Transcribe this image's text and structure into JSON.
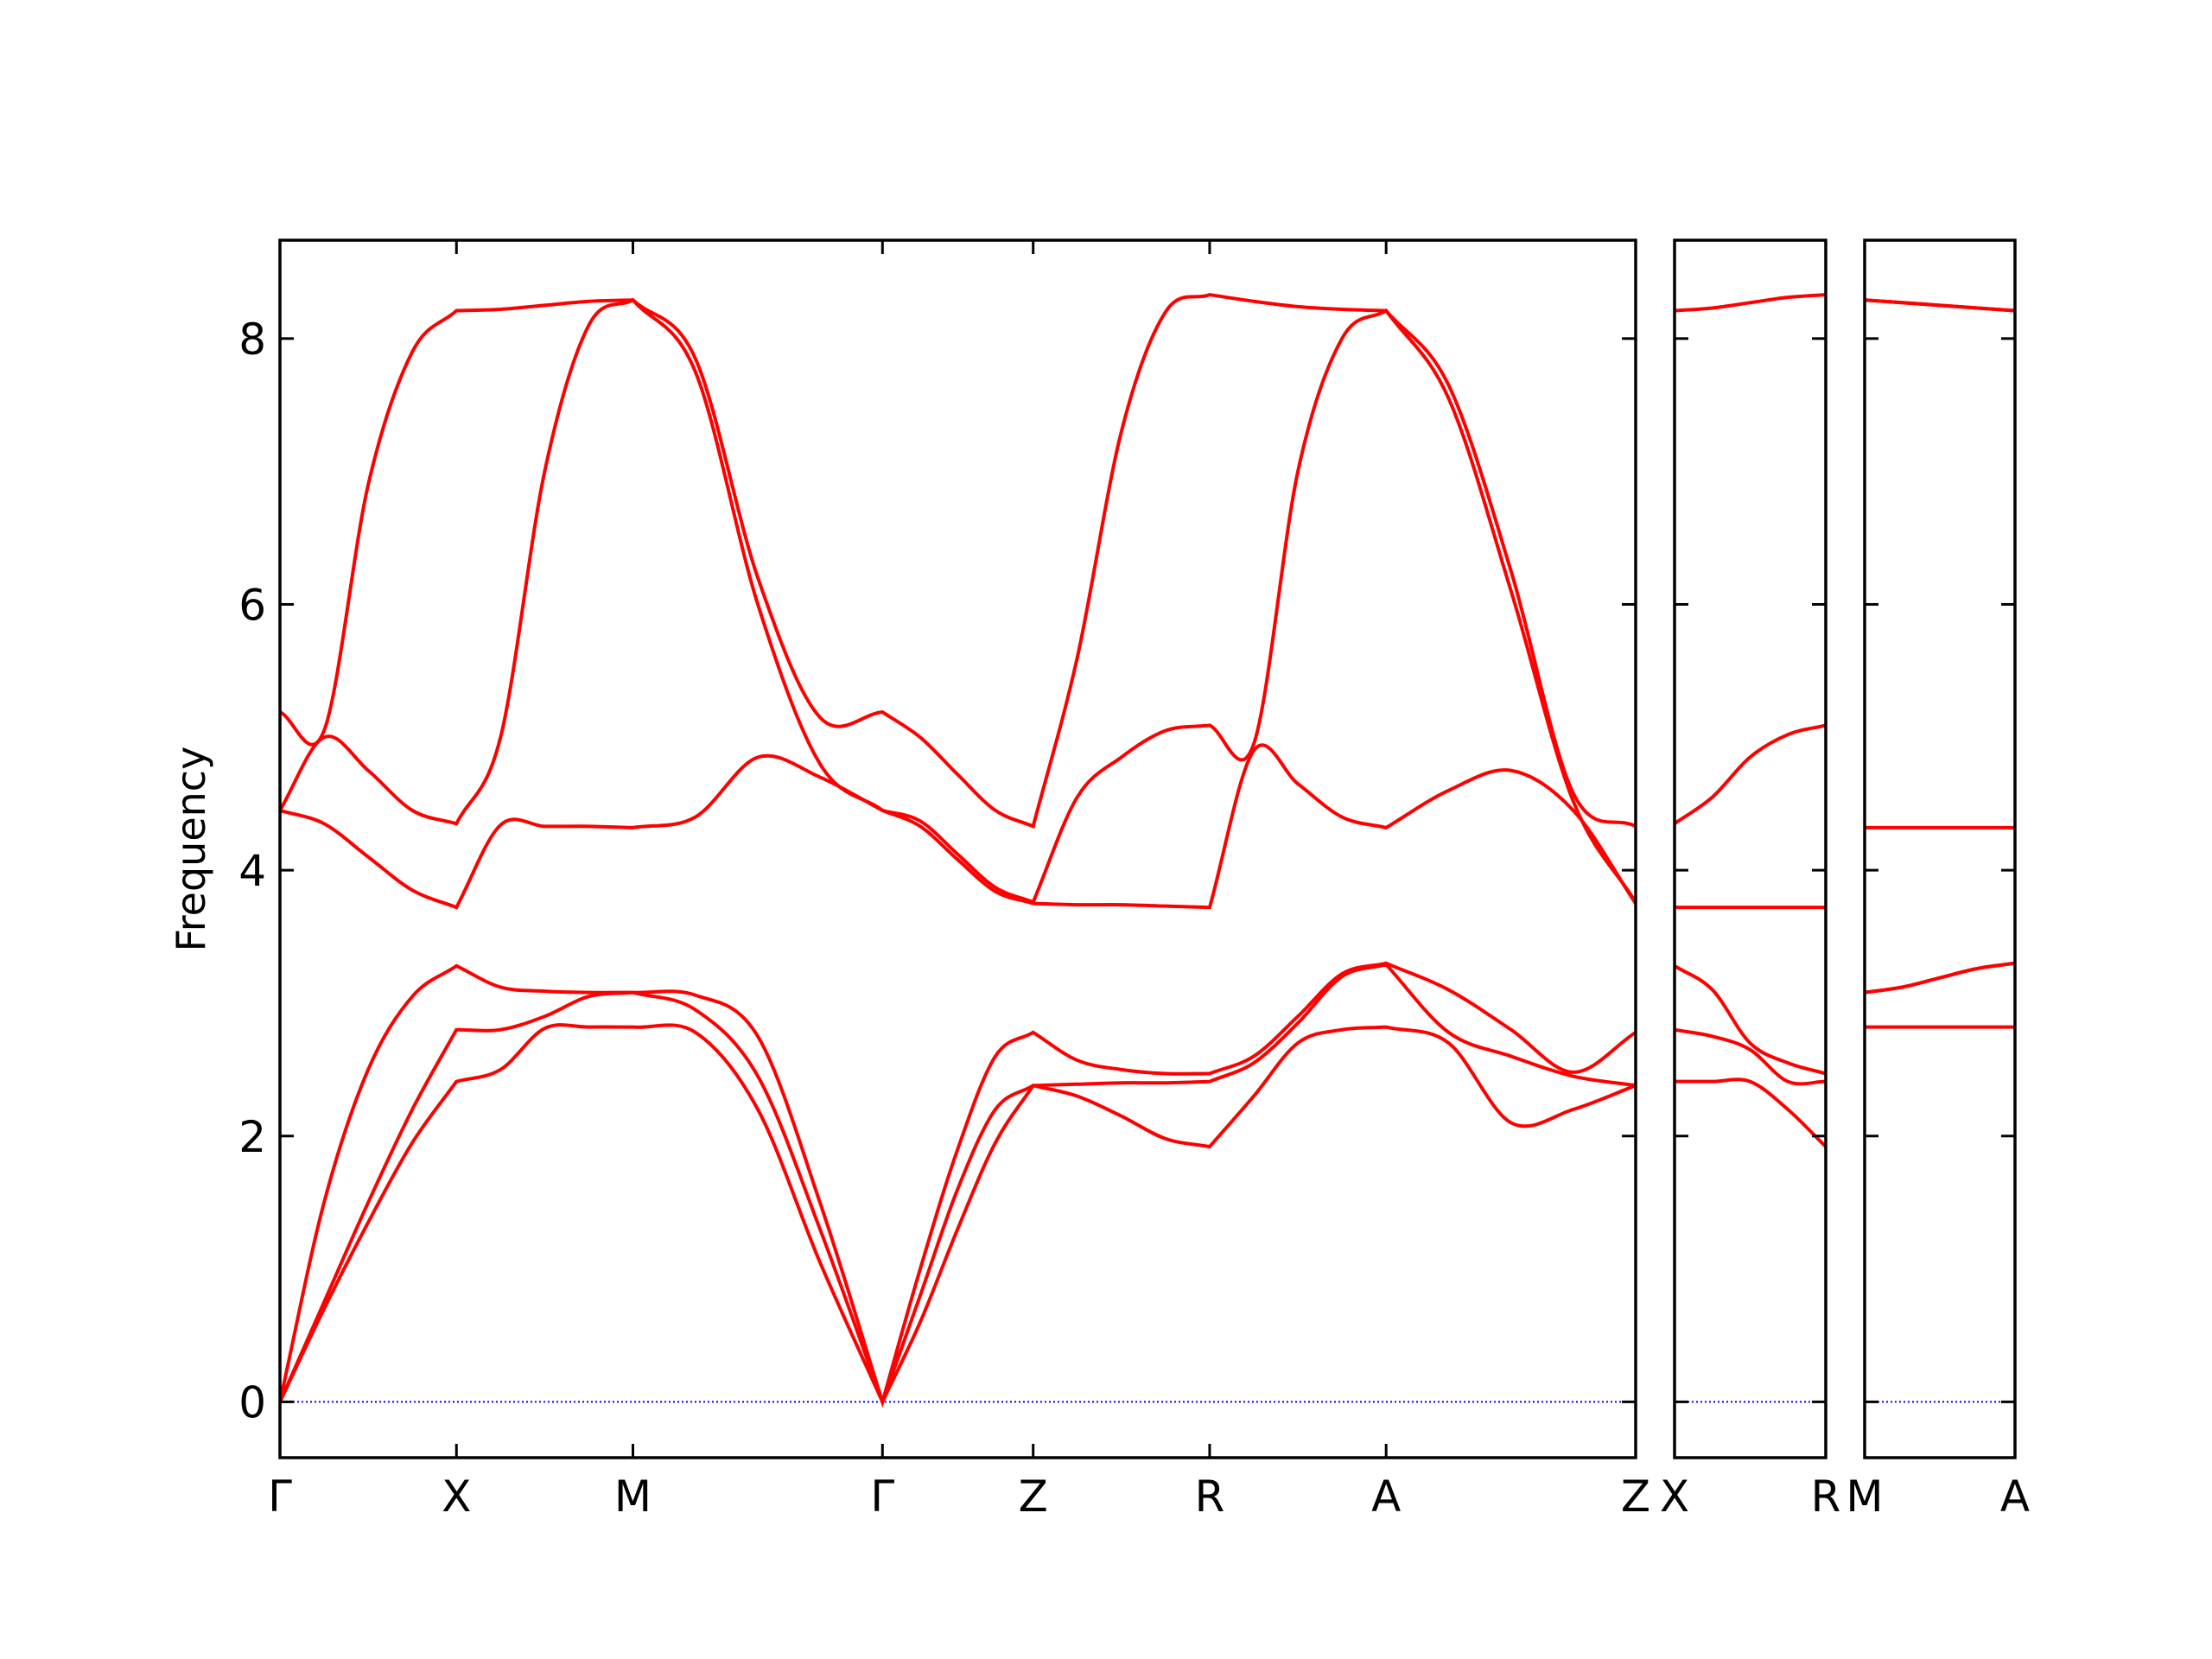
{
  "chart_data": [
    {
      "type": "line",
      "ylabel": "Frequency",
      "x": [
        0,
        0.125,
        0.25,
        0.375,
        0.5,
        0.625,
        0.75,
        0.875,
        1.0,
        1.177,
        1.354,
        1.53,
        1.707,
        1.814,
        1.92,
        2.027,
        2.134,
        2.259,
        2.384,
        2.509,
        2.634,
        2.759,
        2.884,
        3.009,
        3.134,
        3.311,
        3.488,
        3.664,
        3.841
      ],
      "series": [
        {
          "color": "#ff0000",
          "values": [
            0,
            0.7,
            1.35,
            1.95,
            2.41,
            2.5,
            2.81,
            2.82,
            2.82,
            2.78,
            2.2,
            1.05,
            0,
            0.6,
            1.3,
            1.95,
            2.38,
            2.3,
            2.15,
            1.98,
            1.92,
            2.3,
            2.7,
            2.8,
            2.82,
            2.7,
            2.1,
            2.2,
            2.38
          ]
        },
        {
          "color": "#ff0000",
          "values": [
            0,
            0.75,
            1.5,
            2.2,
            2.8,
            2.8,
            2.9,
            3.05,
            3.08,
            2.95,
            2.45,
            1.3,
            0,
            0.8,
            1.6,
            2.2,
            2.38,
            2.39,
            2.4,
            2.4,
            2.41,
            2.55,
            2.85,
            3.2,
            3.29,
            2.78,
            2.6,
            2.45,
            2.38
          ]
        },
        {
          "color": "#ff0000",
          "values": [
            0,
            1.5,
            2.5,
            3.05,
            3.28,
            3.12,
            3.09,
            3.08,
            3.08,
            3.06,
            2.75,
            1.5,
            0,
            1.0,
            1.9,
            2.6,
            2.78,
            2.57,
            2.5,
            2.47,
            2.47,
            2.6,
            2.9,
            3.22,
            3.3,
            3.1,
            2.8,
            2.48,
            2.78
          ]
        },
        {
          "color": "#ff0000",
          "values": [
            4.45,
            4.35,
            4.1,
            3.85,
            3.72,
            4.34,
            4.33,
            4.33,
            4.32,
            4.4,
            4.85,
            4.7,
            4.45,
            4.33,
            4.08,
            3.84,
            3.75,
            3.74,
            3.74,
            3.73,
            3.72,
            4.9,
            4.65,
            4.4,
            4.32,
            4.6,
            4.75,
            4.45,
            3.75
          ]
        },
        {
          "color": "#ff0000",
          "values": [
            4.45,
            5.0,
            4.75,
            4.45,
            4.35,
            5.0,
            7.0,
            8.1,
            8.29,
            7.75,
            6.0,
            4.8,
            4.45,
            4.37,
            4.12,
            3.87,
            3.76,
            4.55,
            4.85,
            5.05,
            5.09,
            4.95,
            7.0,
            8.0,
            8.21,
            7.55,
            6.1,
            4.52,
            3.76
          ]
        },
        {
          "color": "#ff0000",
          "values": [
            5.19,
            5.05,
            6.9,
            7.9,
            8.21,
            8.22,
            8.25,
            8.28,
            8.29,
            7.85,
            6.2,
            5.15,
            5.19,
            5.0,
            4.72,
            4.45,
            4.33,
            5.6,
            7.3,
            8.2,
            8.33,
            8.28,
            8.24,
            8.22,
            8.21,
            7.65,
            6.25,
            4.58,
            4.33
          ]
        }
      ],
      "xlim": [
        0,
        3.841
      ],
      "xticks": [
        {
          "value": 0,
          "label": "Γ"
        },
        {
          "value": 0.5,
          "label": "X"
        },
        {
          "value": 1.0,
          "label": "M"
        },
        {
          "value": 1.707,
          "label": "Γ"
        },
        {
          "value": 2.134,
          "label": "Z"
        },
        {
          "value": 2.634,
          "label": "R"
        },
        {
          "value": 3.134,
          "label": "A"
        },
        {
          "value": 3.841,
          "label": "Z"
        }
      ],
      "ylim": [
        -0.42,
        8.74
      ],
      "yticks": [
        0,
        2,
        4,
        6,
        8
      ],
      "ytick_labels": true,
      "reference_line": 0,
      "reference_color": "#0000ff"
    },
    {
      "type": "line",
      "x": [
        0,
        0.107,
        0.213,
        0.32,
        0.427
      ],
      "series": [
        {
          "color": "#ff0000",
          "values": [
            2.41,
            2.41,
            2.41,
            2.2,
            1.92
          ]
        },
        {
          "color": "#ff0000",
          "values": [
            2.8,
            2.75,
            2.65,
            2.41,
            2.41
          ]
        },
        {
          "color": "#ff0000",
          "values": [
            3.28,
            3.1,
            2.7,
            2.55,
            2.47
          ]
        },
        {
          "color": "#ff0000",
          "values": [
            3.72,
            3.72,
            3.72,
            3.72,
            3.72
          ]
        },
        {
          "color": "#ff0000",
          "values": [
            4.35,
            4.55,
            4.85,
            5.02,
            5.09
          ]
        },
        {
          "color": "#ff0000",
          "values": [
            8.21,
            8.23,
            8.27,
            8.31,
            8.33
          ]
        }
      ],
      "xlim": [
        0,
        0.427
      ],
      "xticks": [
        {
          "value": 0,
          "label": "X"
        },
        {
          "value": 0.427,
          "label": "R"
        }
      ],
      "ylim": [
        -0.42,
        8.74
      ],
      "yticks": [
        0,
        2,
        4,
        6,
        8
      ],
      "ytick_labels": false,
      "reference_line": 0,
      "reference_color": "#0000ff"
    },
    {
      "type": "line",
      "x": [
        0,
        0.107,
        0.213,
        0.32,
        0.427
      ],
      "series": [
        {
          "color": "#ff0000",
          "values": [
            2.82,
            2.82,
            2.82,
            2.82,
            2.82
          ]
        },
        {
          "color": "#ff0000",
          "values": [
            3.08,
            3.12,
            3.19,
            3.26,
            3.3
          ]
        },
        {
          "color": "#ff0000",
          "values": [
            3.08,
            3.12,
            3.19,
            3.26,
            3.3
          ]
        },
        {
          "color": "#ff0000",
          "values": [
            4.32,
            4.32,
            4.32,
            4.32,
            4.32
          ]
        },
        {
          "color": "#ff0000",
          "values": [
            8.29,
            8.27,
            8.25,
            8.23,
            8.21
          ]
        },
        {
          "color": "#ff0000",
          "values": [
            8.29,
            8.27,
            8.25,
            8.23,
            8.21
          ]
        }
      ],
      "xlim": [
        0,
        0.427
      ],
      "xticks": [
        {
          "value": 0,
          "label": "M"
        },
        {
          "value": 0.427,
          "label": "A"
        }
      ],
      "ylim": [
        -0.42,
        8.74
      ],
      "yticks": [
        0,
        2,
        4,
        6,
        8
      ],
      "ytick_labels": false,
      "reference_line": 0,
      "reference_color": "#0000ff"
    }
  ]
}
